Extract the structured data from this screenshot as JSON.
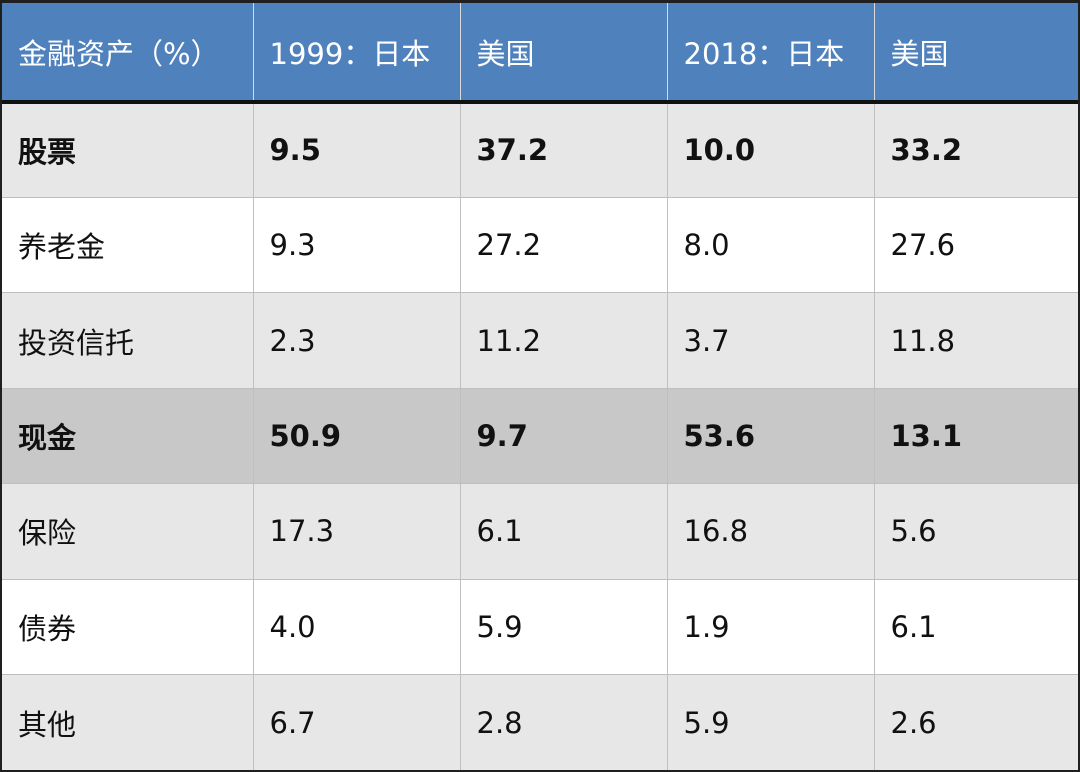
{
  "chart_data": {
    "type": "table",
    "headers": [
      "金融资产（%）",
      "1999：日本",
      "美国",
      "2018：日本",
      "美国"
    ],
    "rows": [
      {
        "label": "股票",
        "values": [
          "9.5",
          "37.2",
          "10.0",
          "33.2"
        ]
      },
      {
        "label": "养老金",
        "values": [
          "9.3",
          "27.2",
          "8.0",
          "27.6"
        ]
      },
      {
        "label": "投资信托",
        "values": [
          "2.3",
          "11.2",
          "3.7",
          "11.8"
        ]
      },
      {
        "label": "现金",
        "values": [
          "50.9",
          "9.7",
          "53.6",
          "13.1"
        ]
      },
      {
        "label": "保险",
        "values": [
          "17.3",
          "6.1",
          "16.8",
          "5.6"
        ]
      },
      {
        "label": "债券",
        "values": [
          "4.0",
          "5.9",
          "1.9",
          "6.1"
        ]
      },
      {
        "label": "其他",
        "values": [
          "6.7",
          "2.8",
          "5.9",
          "2.6"
        ]
      }
    ]
  },
  "colors": {
    "header_bg": "#4f81bd",
    "header_text": "#ffffff",
    "row_light": "#e7e7e7",
    "row_white": "#ffffff",
    "row_highlight": "#c8c8c8"
  }
}
